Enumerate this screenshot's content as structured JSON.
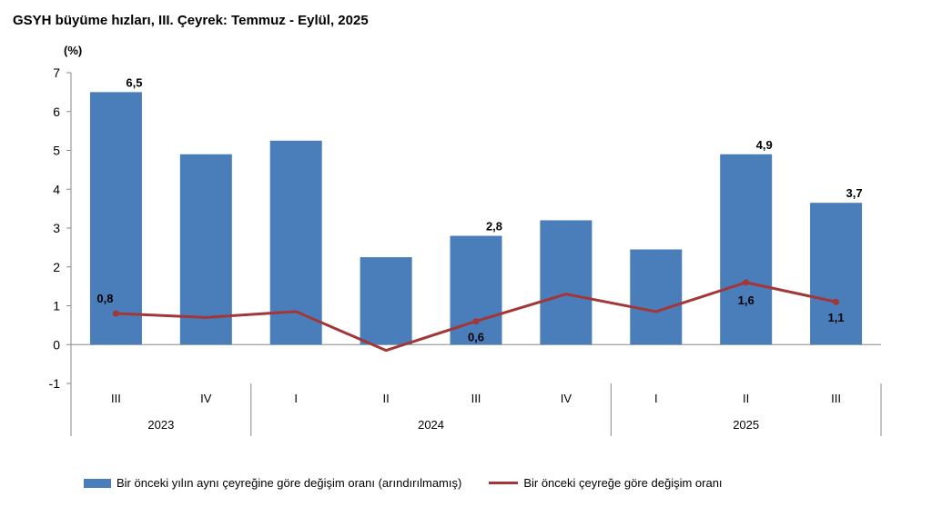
{
  "chart_data": {
    "type": "bar",
    "title": "GSYH büyüme hızları, III. Çeyrek: Temmuz - Eylül, 2025",
    "unit": "(%)",
    "ylim": [
      -1,
      7
    ],
    "yticks": [
      "7",
      "6",
      "5",
      "4",
      "3",
      "2",
      "1",
      "0",
      "-1"
    ],
    "ytick_values": [
      7,
      6,
      5,
      4,
      3,
      2,
      1,
      0,
      -1
    ],
    "categories": [
      "III",
      "IV",
      "I",
      "II",
      "III",
      "IV",
      "I",
      "II",
      "III"
    ],
    "groups": [
      {
        "label": "2023",
        "start": 0,
        "end": 1
      },
      {
        "label": "2024",
        "start": 2,
        "end": 5
      },
      {
        "label": "2025",
        "start": 6,
        "end": 8
      }
    ],
    "series": [
      {
        "name": "Bir önceki yılın aynı çeyreğine göre değişim oranı (arındırılmamış)",
        "kind": "bar",
        "color": "#4a7ebb",
        "values": [
          6.5,
          4.9,
          5.25,
          2.25,
          2.8,
          3.2,
          2.45,
          4.9,
          3.65
        ],
        "labels": [
          "6,5",
          "",
          "",
          "",
          "2,8",
          "",
          "",
          "4,9",
          "3,7"
        ]
      },
      {
        "name": "Bir önceki çeyreğe göre değişim oranı",
        "kind": "line",
        "color": "#a33636",
        "values": [
          0.8,
          0.7,
          0.85,
          -0.15,
          0.6,
          1.3,
          0.85,
          1.6,
          1.1
        ],
        "labels": [
          "0,8",
          "",
          "",
          "",
          "0,6",
          "",
          "",
          "1,6",
          "1,1"
        ]
      }
    ],
    "legend_position": "bottom",
    "grid": false
  }
}
